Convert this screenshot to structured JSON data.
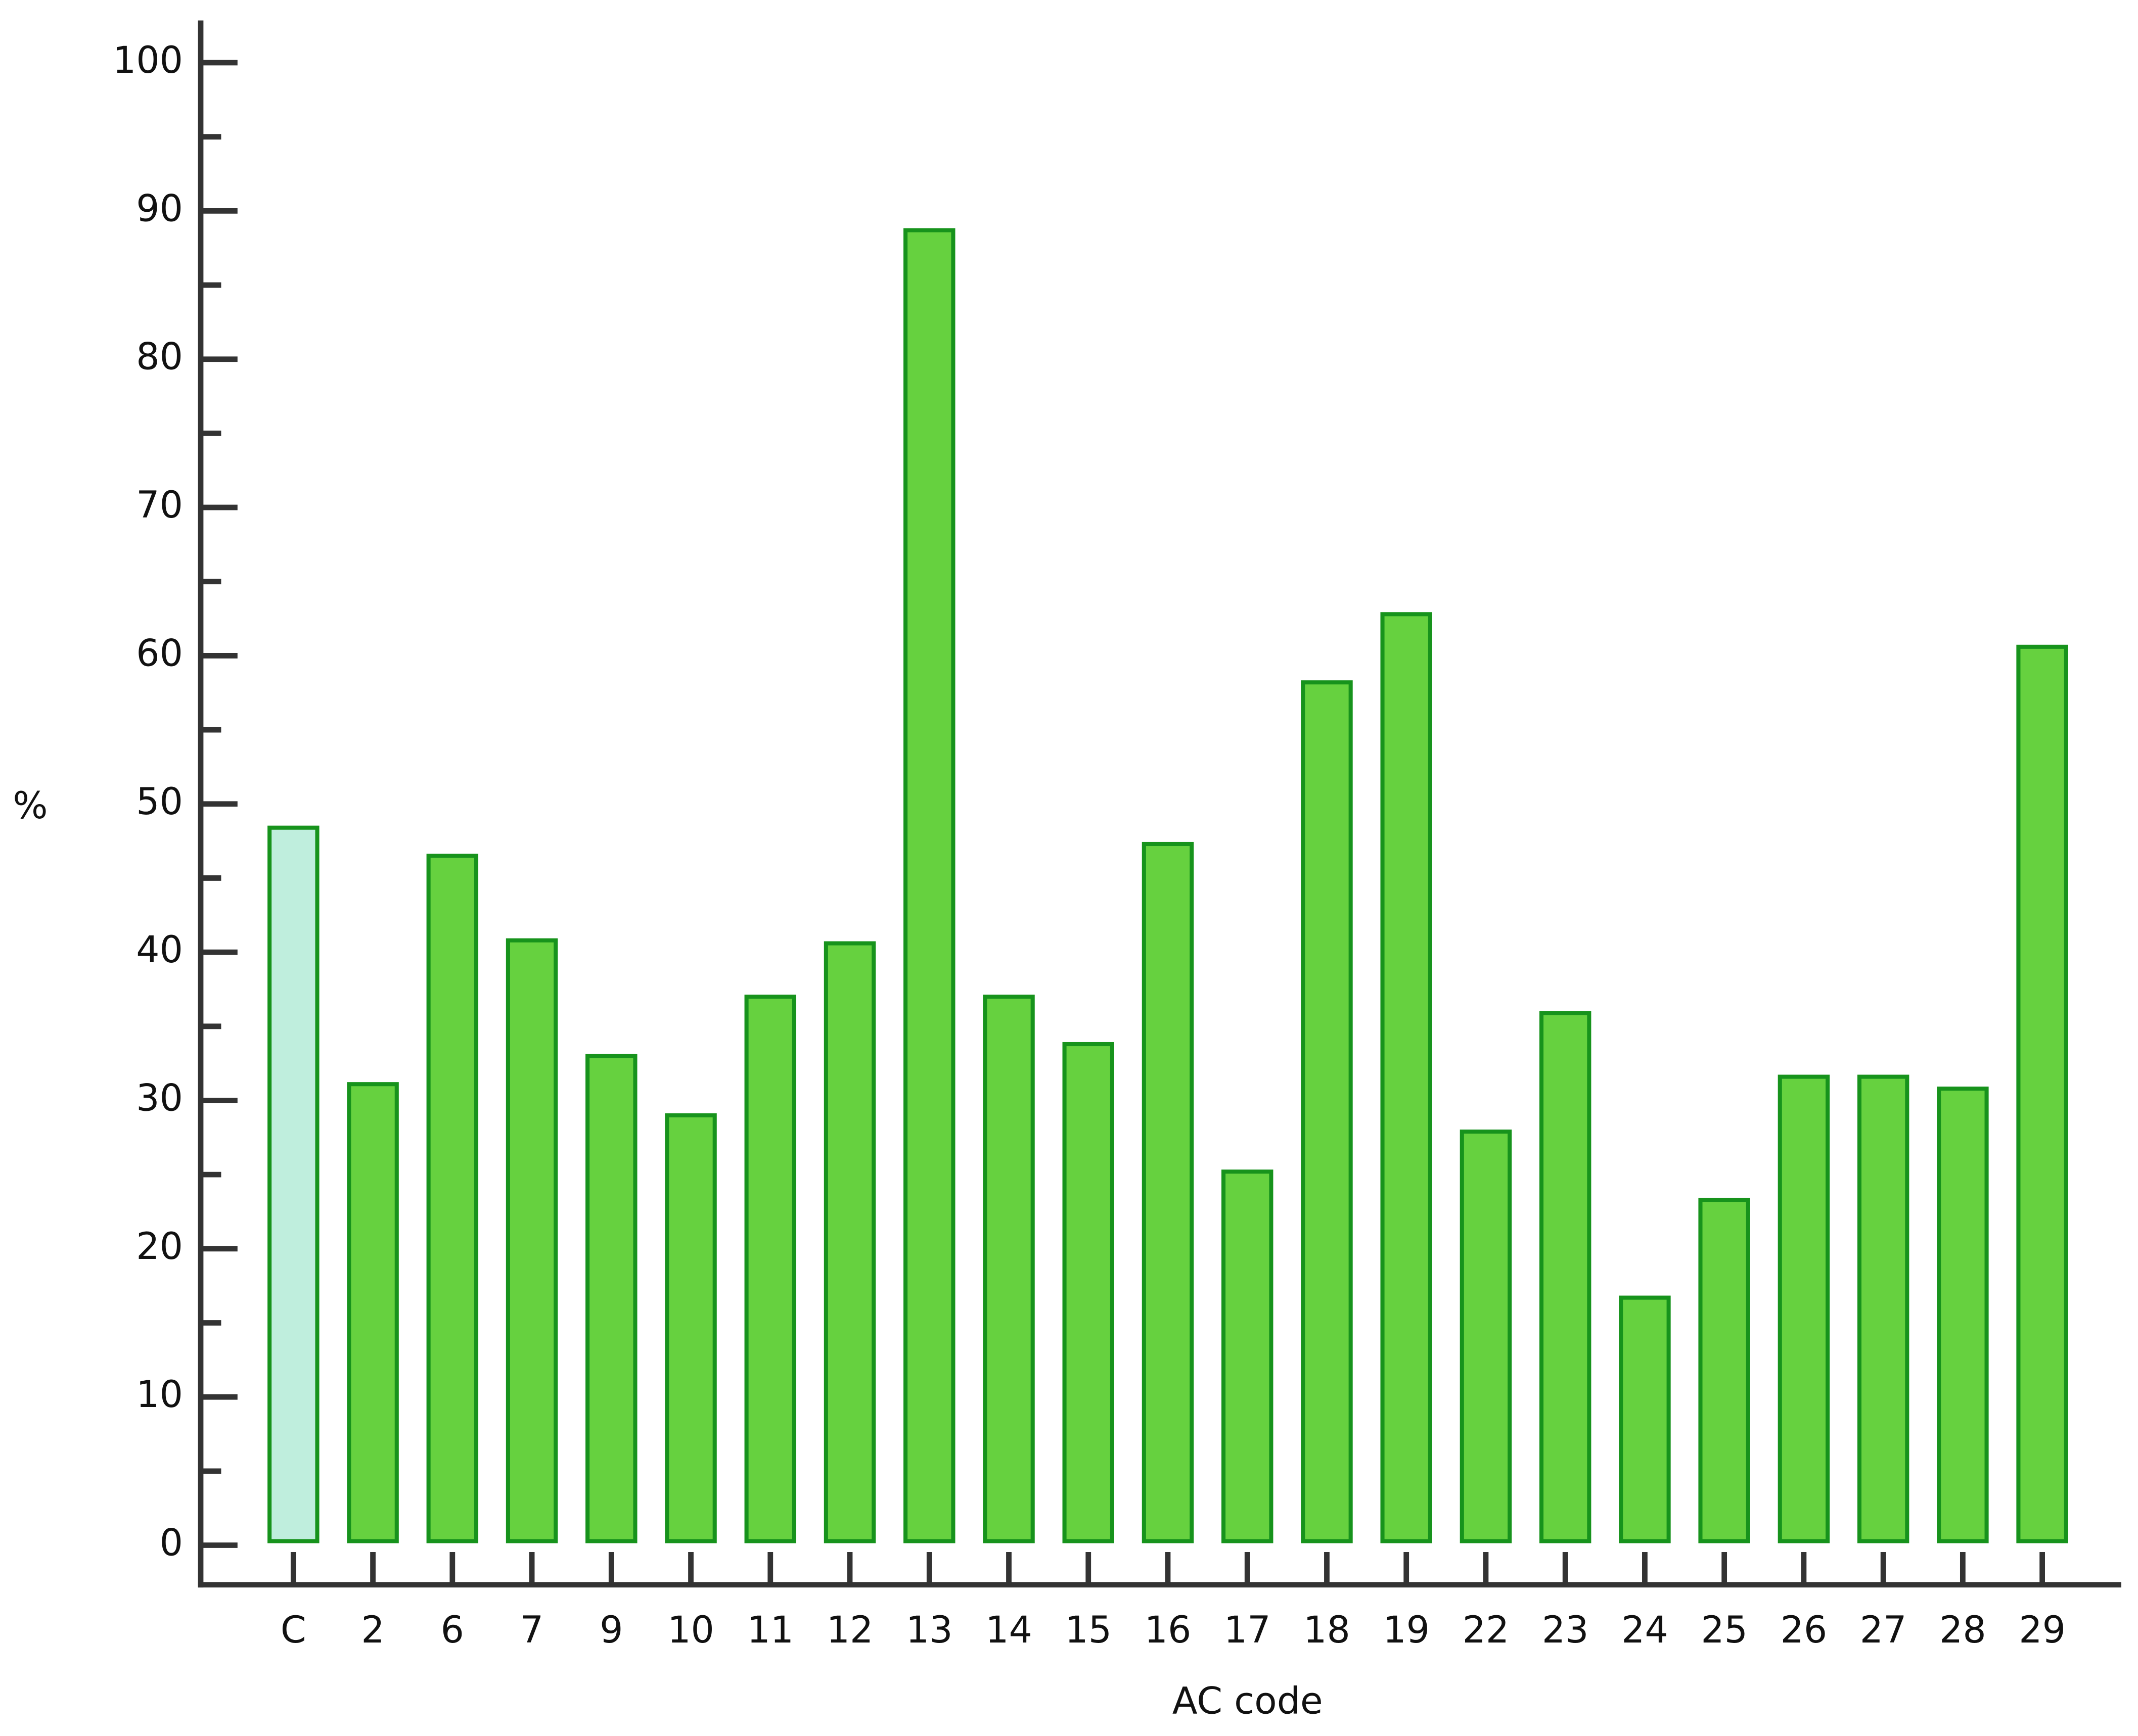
{
  "chart_data": {
    "type": "bar",
    "x_label": "AC code",
    "y_label": "%",
    "categories": [
      "C",
      "2",
      "6",
      "7",
      "9",
      "10",
      "11",
      "12",
      "13",
      "14",
      "15",
      "16",
      "17",
      "18",
      "19",
      "22",
      "23",
      "24",
      "25",
      "26",
      "27",
      "28",
      "29"
    ],
    "values": [
      48.4,
      31.1,
      46.5,
      40.8,
      33.0,
      29.0,
      37.0,
      40.6,
      88.7,
      37.0,
      33.8,
      47.3,
      25.2,
      58.2,
      62.8,
      27.9,
      35.9,
      16.7,
      23.3,
      31.6,
      31.6,
      30.8,
      60.6
    ],
    "colors": [
      "#bfeedd",
      "#66d13f",
      "#66d13f",
      "#66d13f",
      "#66d13f",
      "#66d13f",
      "#66d13f",
      "#66d13f",
      "#66d13f",
      "#66d13f",
      "#66d13f",
      "#66d13f",
      "#66d13f",
      "#66d13f",
      "#66d13f",
      "#66d13f",
      "#66d13f",
      "#66d13f",
      "#66d13f",
      "#66d13f",
      "#66d13f",
      "#66d13f",
      "#66d13f"
    ],
    "edge_color": "#17931c",
    "ylim": [
      0,
      100
    ],
    "yticks": [
      0,
      10,
      20,
      30,
      40,
      50,
      60,
      70,
      80,
      90,
      100
    ],
    "minor_yticks": [
      5,
      15,
      25,
      35,
      45,
      55,
      65,
      75,
      85,
      95
    ],
    "grid": false
  }
}
